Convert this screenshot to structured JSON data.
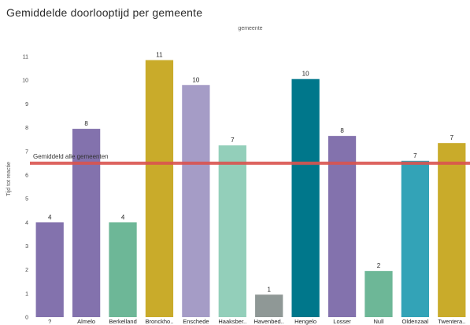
{
  "chart_data": {
    "type": "bar",
    "title": "Gemiddelde doorlooptijd per gemeente",
    "legend_title": "gemeente",
    "legend_position": "top-center",
    "ylabel": "Tijd tot reactie",
    "xlabel": "",
    "ylim": [
      0,
      11.2
    ],
    "yticks": [
      0,
      1,
      2,
      3,
      4,
      5,
      6,
      7,
      8,
      9,
      10,
      11
    ],
    "grid": false,
    "categories": [
      "?",
      "Almelo",
      "Berkelland",
      "Bronckho..",
      "Enschede",
      "Haaksber..",
      "Havenbed..",
      "Hengelo",
      "Losser",
      "Null",
      "Oldenzaal",
      "Twentera.."
    ],
    "values": [
      4,
      7.95,
      4,
      10.85,
      9.8,
      7.25,
      0.95,
      10.05,
      7.65,
      1.95,
      6.6,
      7.35
    ],
    "data_labels": [
      "4",
      "8",
      "4",
      "11",
      "10",
      "7",
      "1",
      "10",
      "8",
      "2",
      "7",
      "7"
    ],
    "colors": [
      "#8372ad",
      "#8372ad",
      "#6db797",
      "#c9ab2a",
      "#a59cc6",
      "#93cfba",
      "#8f9896",
      "#00778b",
      "#8372ad",
      "#6db797",
      "#33a3b7",
      "#c9ab2a"
    ],
    "reference_line": {
      "label": "Gemiddeld alle gemeenten",
      "value": 6.5,
      "color": "#d9534f"
    }
  }
}
